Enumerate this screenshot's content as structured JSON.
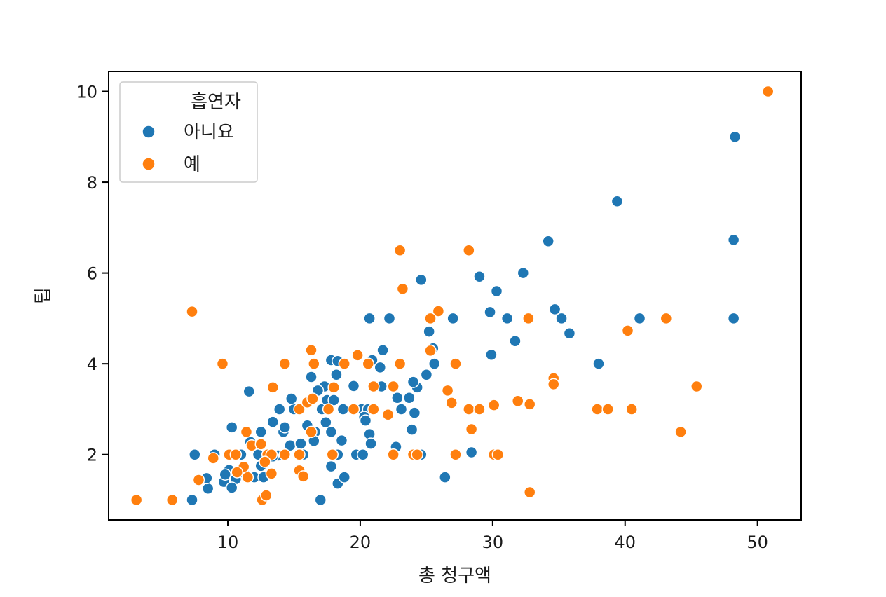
{
  "chart_data": {
    "type": "scatter",
    "title": "",
    "xlabel": "총 청구액",
    "ylabel": "팁",
    "xlim": [
      1,
      53.3
    ],
    "ylim": [
      0.56,
      10.44
    ],
    "xticks": [
      10,
      20,
      30,
      40,
      50
    ],
    "yticks": [
      2,
      4,
      6,
      8,
      10
    ],
    "grid": false,
    "legend": {
      "title": "흡연자",
      "placement": "top-left"
    },
    "series": [
      {
        "name": "아니요",
        "color": "#1f77b4",
        "points": [
          [
            48.3,
            9.0
          ],
          [
            39.4,
            7.58
          ],
          [
            48.2,
            6.73
          ],
          [
            34.2,
            6.7
          ],
          [
            32.3,
            6.0
          ],
          [
            24.6,
            5.85
          ],
          [
            29.0,
            5.92
          ],
          [
            30.3,
            5.6
          ],
          [
            29.8,
            5.14
          ],
          [
            34.7,
            5.2
          ],
          [
            35.2,
            5.0
          ],
          [
            35.8,
            4.67
          ],
          [
            31.1,
            5.0
          ],
          [
            41.1,
            5.0
          ],
          [
            48.2,
            5.0
          ],
          [
            27.0,
            5.0
          ],
          [
            20.7,
            5.0
          ],
          [
            22.2,
            5.0
          ],
          [
            31.7,
            4.5
          ],
          [
            38.0,
            4.0
          ],
          [
            29.9,
            4.2
          ],
          [
            25.2,
            4.71
          ],
          [
            25.5,
            4.34
          ],
          [
            21.7,
            4.3
          ],
          [
            25.6,
            4.0
          ],
          [
            17.8,
            4.08
          ],
          [
            18.3,
            4.06
          ],
          [
            20.9,
            4.08
          ],
          [
            21.5,
            3.92
          ],
          [
            16.3,
            3.71
          ],
          [
            18.2,
            3.76
          ],
          [
            17.3,
            3.5
          ],
          [
            19.5,
            3.51
          ],
          [
            21.6,
            3.5
          ],
          [
            24.3,
            3.48
          ],
          [
            24.0,
            3.6
          ],
          [
            25.0,
            3.76
          ],
          [
            23.7,
            3.25
          ],
          [
            22.8,
            3.25
          ],
          [
            11.6,
            3.39
          ],
          [
            16.8,
            3.41
          ],
          [
            15.0,
            3.0
          ],
          [
            13.9,
            3.0
          ],
          [
            17.1,
            3.0
          ],
          [
            18.7,
            3.0
          ],
          [
            20.1,
            3.0
          ],
          [
            20.6,
            3.0
          ],
          [
            23.1,
            3.0
          ],
          [
            14.8,
            3.23
          ],
          [
            17.5,
            3.2
          ],
          [
            18.0,
            3.2
          ],
          [
            20.3,
            2.83
          ],
          [
            20.4,
            2.75
          ],
          [
            20.7,
            2.45
          ],
          [
            20.8,
            2.24
          ],
          [
            17.4,
            2.71
          ],
          [
            17.8,
            2.5
          ],
          [
            16.0,
            2.64
          ],
          [
            14.2,
            2.5
          ],
          [
            13.4,
            2.72
          ],
          [
            12.5,
            2.5
          ],
          [
            10.3,
            2.6
          ],
          [
            11.7,
            2.28
          ],
          [
            14.3,
            2.6
          ],
          [
            24.1,
            2.92
          ],
          [
            23.9,
            2.55
          ],
          [
            16.6,
            2.5
          ],
          [
            18.6,
            2.31
          ],
          [
            18.3,
            2.0
          ],
          [
            19.7,
            2.0
          ],
          [
            20.2,
            2.0
          ],
          [
            24.6,
            2.0
          ],
          [
            15.7,
            2.0
          ],
          [
            13.0,
            2.0
          ],
          [
            12.3,
            2.0
          ],
          [
            11.0,
            2.0
          ],
          [
            9.0,
            2.0
          ],
          [
            7.5,
            2.0
          ],
          [
            14.7,
            2.2
          ],
          [
            15.5,
            2.24
          ],
          [
            16.5,
            2.3
          ],
          [
            13.8,
            1.98
          ],
          [
            12.5,
            1.75
          ],
          [
            12.0,
            1.5
          ],
          [
            10.6,
            1.46
          ],
          [
            11.2,
            1.6
          ],
          [
            9.7,
            1.4
          ],
          [
            10.3,
            1.27
          ],
          [
            8.5,
            1.25
          ],
          [
            10.1,
            1.66
          ],
          [
            9.8,
            1.56
          ],
          [
            8.4,
            1.48
          ],
          [
            18.3,
            1.36
          ],
          [
            26.4,
            1.5
          ],
          [
            18.8,
            1.5
          ],
          [
            17.8,
            1.74
          ],
          [
            7.3,
            1.0
          ],
          [
            17.0,
            1.0
          ],
          [
            28.4,
            2.05
          ],
          [
            13.4,
            1.96
          ],
          [
            22.7,
            2.17
          ],
          [
            12.7,
            1.5
          ]
        ]
      },
      {
        "name": "예",
        "color": "#ff7f0e",
        "points": [
          [
            50.8,
            10.0
          ],
          [
            23.0,
            6.5
          ],
          [
            28.2,
            6.5
          ],
          [
            23.2,
            5.65
          ],
          [
            7.3,
            5.15
          ],
          [
            25.9,
            5.16
          ],
          [
            25.3,
            5.0
          ],
          [
            32.7,
            5.0
          ],
          [
            43.1,
            5.0
          ],
          [
            40.2,
            4.73
          ],
          [
            25.3,
            4.29
          ],
          [
            16.3,
            4.3
          ],
          [
            9.6,
            4.0
          ],
          [
            14.3,
            4.0
          ],
          [
            16.5,
            4.0
          ],
          [
            18.8,
            4.0
          ],
          [
            19.8,
            4.19
          ],
          [
            20.6,
            4.0
          ],
          [
            23.0,
            4.0
          ],
          [
            27.2,
            4.0
          ],
          [
            34.6,
            3.68
          ],
          [
            34.6,
            3.55
          ],
          [
            45.4,
            3.5
          ],
          [
            26.6,
            3.41
          ],
          [
            13.4,
            3.48
          ],
          [
            18.0,
            3.48
          ],
          [
            21.0,
            3.5
          ],
          [
            22.5,
            3.5
          ],
          [
            26.9,
            3.14
          ],
          [
            31.9,
            3.18
          ],
          [
            32.8,
            3.11
          ],
          [
            30.1,
            3.09
          ],
          [
            28.2,
            3.0
          ],
          [
            29.0,
            3.0
          ],
          [
            37.9,
            3.0
          ],
          [
            38.7,
            3.0
          ],
          [
            40.5,
            3.0
          ],
          [
            15.4,
            3.0
          ],
          [
            17.6,
            3.0
          ],
          [
            19.5,
            3.0
          ],
          [
            21.0,
            3.0
          ],
          [
            16.0,
            3.15
          ],
          [
            16.4,
            3.23
          ],
          [
            22.1,
            2.88
          ],
          [
            28.4,
            2.56
          ],
          [
            44.2,
            2.5
          ],
          [
            11.4,
            2.5
          ],
          [
            16.3,
            2.5
          ],
          [
            11.8,
            2.2
          ],
          [
            12.5,
            2.23
          ],
          [
            13.0,
            2.0
          ],
          [
            13.3,
            2.0
          ],
          [
            14.3,
            2.0
          ],
          [
            15.4,
            2.0
          ],
          [
            17.9,
            2.0
          ],
          [
            22.5,
            2.0
          ],
          [
            24.0,
            2.0
          ],
          [
            24.3,
            2.0
          ],
          [
            27.2,
            2.0
          ],
          [
            30.1,
            2.0
          ],
          [
            30.4,
            2.0
          ],
          [
            10.1,
            2.0
          ],
          [
            10.6,
            2.0
          ],
          [
            8.9,
            1.92
          ],
          [
            12.8,
            1.84
          ],
          [
            11.2,
            1.73
          ],
          [
            10.7,
            1.61
          ],
          [
            11.5,
            1.5
          ],
          [
            13.3,
            1.58
          ],
          [
            15.4,
            1.65
          ],
          [
            15.7,
            1.52
          ],
          [
            7.8,
            1.44
          ],
          [
            3.1,
            1.0
          ],
          [
            5.8,
            1.0
          ],
          [
            12.6,
            1.0
          ],
          [
            12.9,
            1.1
          ],
          [
            32.8,
            1.17
          ]
        ]
      }
    ]
  }
}
